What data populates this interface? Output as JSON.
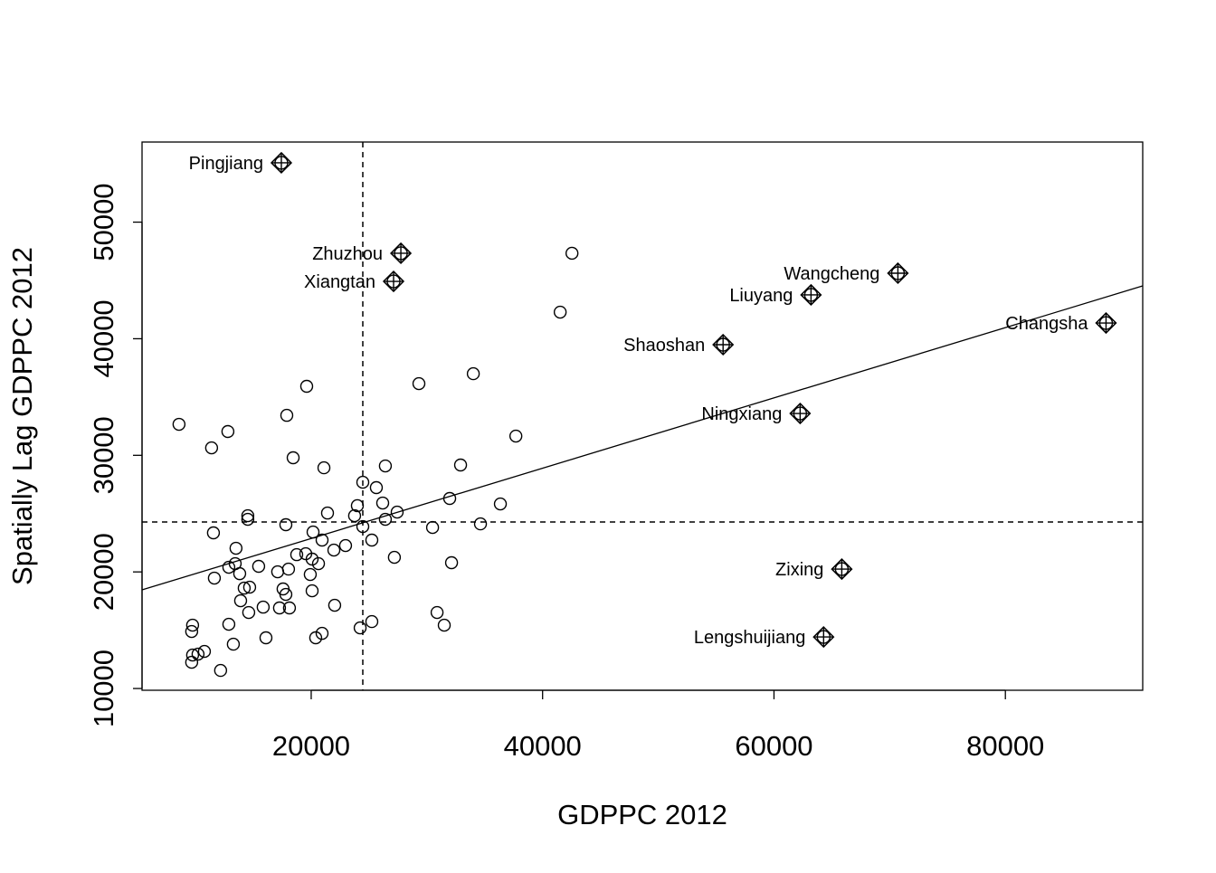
{
  "chart_data": {
    "type": "scatter",
    "title": "",
    "xlabel": "GDPPC 2012",
    "ylabel": "Spatially Lag GDPPC 2012",
    "xlim": [
      5380,
      91870
    ],
    "ylim": [
      9850,
      56870
    ],
    "xticks": [
      20000,
      40000,
      60000,
      80000
    ],
    "yticks": [
      10000,
      20000,
      30000,
      40000,
      50000
    ],
    "xtick_labels": [
      "20000",
      "40000",
      "60000",
      "80000"
    ],
    "ytick_labels": [
      "10000",
      "20000",
      "30000",
      "40000",
      "50000"
    ],
    "grid": false,
    "mean_x": 24460,
    "mean_y": 24280,
    "regression_line": {
      "x": [
        5380,
        91870
      ],
      "y": [
        18460,
        44530
      ]
    },
    "points": [
      [
        8575,
        32660
      ],
      [
        11390,
        30640
      ],
      [
        12800,
        32040
      ],
      [
        19610,
        35920
      ],
      [
        17890,
        33430
      ],
      [
        18440,
        29790
      ],
      [
        21100,
        28930
      ],
      [
        14520,
        24820
      ],
      [
        14520,
        24510
      ],
      [
        11550,
        23350
      ],
      [
        17810,
        24050
      ],
      [
        13500,
        22030
      ],
      [
        21410,
        25050
      ],
      [
        20160,
        23420
      ],
      [
        20940,
        22730
      ],
      [
        21960,
        21870
      ],
      [
        22970,
        22260
      ],
      [
        19530,
        21560
      ],
      [
        18750,
        21480
      ],
      [
        20080,
        21100
      ],
      [
        20630,
        20710
      ],
      [
        13430,
        20710
      ],
      [
        12880,
        20400
      ],
      [
        15460,
        20480
      ],
      [
        18040,
        20240
      ],
      [
        17100,
        20010
      ],
      [
        13820,
        19850
      ],
      [
        11630,
        19470
      ],
      [
        19920,
        19780
      ],
      [
        14680,
        18690
      ],
      [
        14210,
        18610
      ],
      [
        20080,
        18380
      ],
      [
        17570,
        18540
      ],
      [
        17810,
        18070
      ],
      [
        13900,
        17530
      ],
      [
        15850,
        16980
      ],
      [
        17260,
        16910
      ],
      [
        18120,
        16910
      ],
      [
        22030,
        17140
      ],
      [
        14600,
        16520
      ],
      [
        12880,
        15510
      ],
      [
        9750,
        15430
      ],
      [
        9670,
        14890
      ],
      [
        16090,
        14350
      ],
      [
        20390,
        14350
      ],
      [
        20940,
        14730
      ],
      [
        13270,
        13800
      ],
      [
        10770,
        13180
      ],
      [
        10220,
        12950
      ],
      [
        9750,
        12870
      ],
      [
        9670,
        12250
      ],
      [
        12170,
        11550
      ],
      [
        24230,
        15200
      ],
      [
        25240,
        15740
      ],
      [
        24460,
        27690
      ],
      [
        25630,
        27230
      ],
      [
        23990,
        25680
      ],
      [
        23750,
        24820
      ],
      [
        24460,
        23890
      ],
      [
        26180,
        25910
      ],
      [
        26410,
        24510
      ],
      [
        27430,
        25130
      ],
      [
        26410,
        29090
      ],
      [
        25240,
        22730
      ],
      [
        27190,
        21250
      ],
      [
        30490,
        23810
      ],
      [
        31970,
        26300
      ],
      [
        32910,
        29170
      ],
      [
        34630,
        24120
      ],
      [
        36350,
        25830
      ],
      [
        37690,
        31650
      ],
      [
        29310,
        36150
      ],
      [
        34010,
        37000
      ],
      [
        32130,
        20790
      ],
      [
        30880,
        16520
      ],
      [
        31500,
        15430
      ],
      [
        41520,
        42280
      ],
      [
        42540,
        47330
      ]
    ],
    "influential_points": [
      {
        "label": "Pingjiang",
        "x": 17420,
        "y": 55090
      },
      {
        "label": "Zhuzhou",
        "x": 27750,
        "y": 47330
      },
      {
        "label": "Xiangtan",
        "x": 27120,
        "y": 44920
      },
      {
        "label": "Wangcheng",
        "x": 70710,
        "y": 45620
      },
      {
        "label": "Liuyang",
        "x": 63200,
        "y": 43760
      },
      {
        "label": "Changsha",
        "x": 88700,
        "y": 41350
      },
      {
        "label": "Shaoshan",
        "x": 55600,
        "y": 39490
      },
      {
        "label": "Ningxiang",
        "x": 62260,
        "y": 33590
      },
      {
        "label": "Zixing",
        "x": 65860,
        "y": 20240
      },
      {
        "label": "Lengshuijiang",
        "x": 64290,
        "y": 14420
      }
    ]
  }
}
